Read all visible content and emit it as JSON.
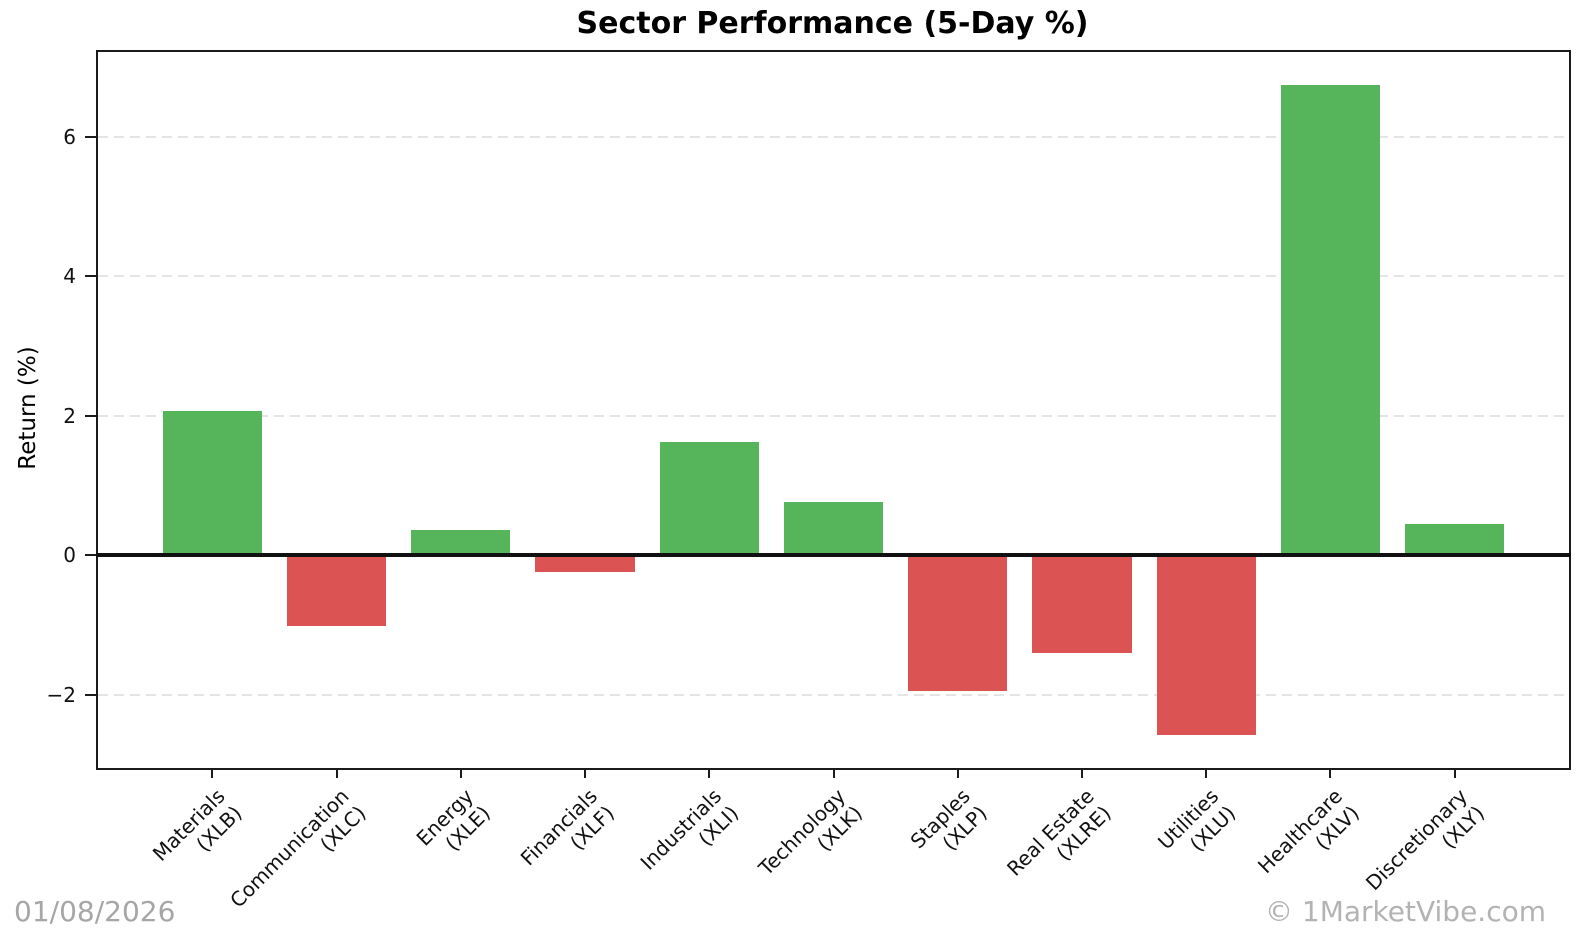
{
  "chart_data": {
    "type": "bar",
    "title": "Sector Performance (5-Day %)",
    "xlabel": "",
    "ylabel": "Return (%)",
    "categories": [
      {
        "label": "Materials",
        "ticker": "(XLB)"
      },
      {
        "label": "Communication",
        "ticker": "(XLC)"
      },
      {
        "label": "Energy",
        "ticker": "(XLE)"
      },
      {
        "label": "Financials",
        "ticker": "(XLF)"
      },
      {
        "label": "Industrials",
        "ticker": "(XLI)"
      },
      {
        "label": "Technology",
        "ticker": "(XLK)"
      },
      {
        "label": "Staples",
        "ticker": "(XLP)"
      },
      {
        "label": "Real Estate",
        "ticker": "(XLRE)"
      },
      {
        "label": "Utilities",
        "ticker": "(XLU)"
      },
      {
        "label": "Healthcare",
        "ticker": "(XLV)"
      },
      {
        "label": "Discretionary",
        "ticker": "(XLY)"
      }
    ],
    "values": [
      2.07,
      -1.02,
      0.37,
      -0.24,
      1.63,
      0.77,
      -1.94,
      -1.4,
      -2.57,
      6.75,
      0.45
    ],
    "yticks": [
      -2,
      0,
      2,
      4,
      6
    ],
    "ylim": [
      -3.05,
      7.22
    ],
    "grid": {
      "axis": "y",
      "style": "dashed",
      "color": "#e4e4e4"
    },
    "legend": "none",
    "colors": {
      "positive": "#56b45a",
      "negative": "#db5353",
      "zero_line": "#111111",
      "spine": "#1a1a1a"
    },
    "bar_width_frac": 0.8,
    "x_margin_frac": 0.92
  },
  "footer": {
    "date": "01/08/2026",
    "credit": "© 1MarketVibe.com"
  }
}
